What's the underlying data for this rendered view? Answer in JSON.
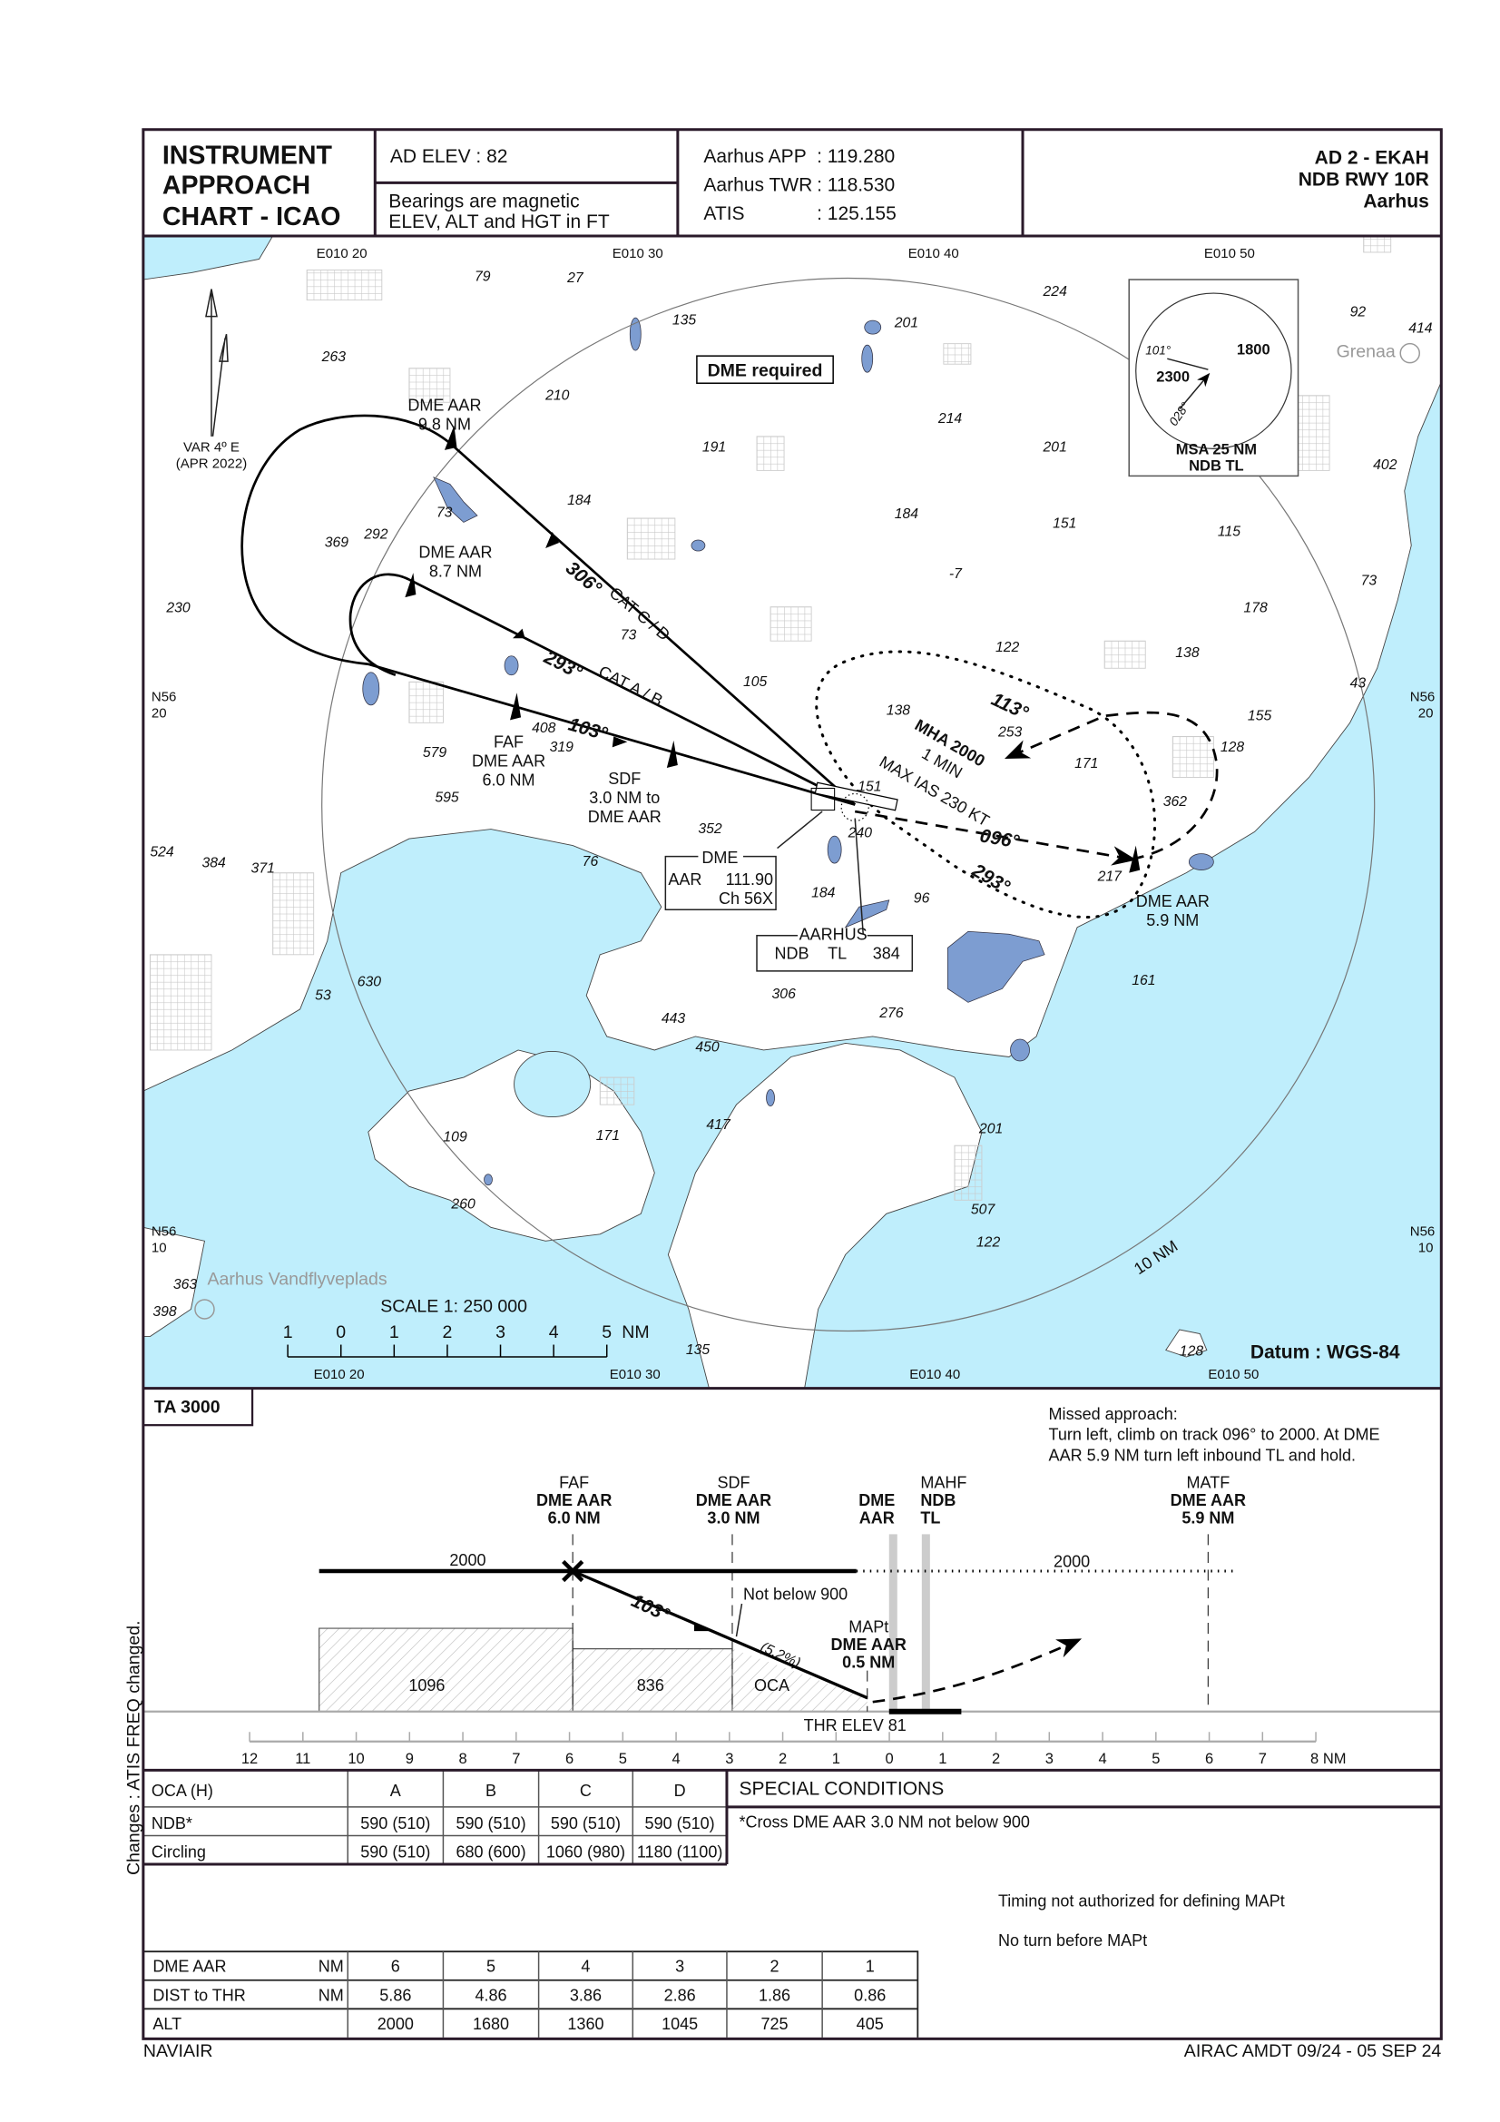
{
  "colors": {
    "sea": "#bfeefc",
    "lake": "#7d9dd1",
    "urban": "#cfcfcf",
    "frame": "#2a1a2a"
  },
  "header": {
    "title_lines": [
      "INSTRUMENT",
      "APPROACH",
      "CHART - ICAO"
    ],
    "ad_elev": "AD ELEV : 82",
    "notes": [
      "Bearings are magnetic",
      "ELEV, ALT and HGT in FT"
    ],
    "freqs": [
      {
        "label": "Aarhus APP",
        "value": ": 119.280"
      },
      {
        "label": "Aarhus TWR",
        "value": ": 118.530"
      },
      {
        "label": "ATIS",
        "value": ": 125.155"
      }
    ],
    "chart_id": [
      "AD 2 - EKAH",
      "NDB RWY 10R",
      "Aarhus"
    ]
  },
  "map": {
    "grid_top": [
      "E010 20",
      "E010 30",
      "E010 40",
      "E010 50"
    ],
    "grid_bottom": [
      "E010 20",
      "E010 30",
      "E010 40",
      "E010 50"
    ],
    "lat_labels": [
      [
        "N56",
        "20"
      ],
      [
        "N56",
        "10"
      ]
    ],
    "dme_required": "DME required",
    "variation": [
      "VAR 4º E",
      "(APR 2022)"
    ],
    "msa": {
      "sectors": [
        "1800",
        "2300"
      ],
      "bearings": [
        "101°",
        "028°"
      ],
      "title": [
        "MSA 25 NM",
        "NDB TL"
      ]
    },
    "grenaa": "Grenaa",
    "seaplane_base": "Aarhus Vandflyveplads",
    "ring_label": "10 NM",
    "fix_labels": {
      "dme_98": [
        "DME AAR",
        "9.8 NM"
      ],
      "dme_87": [
        "DME AAR",
        "8.7 NM"
      ],
      "faf": [
        "FAF",
        "DME AAR",
        "6.0 NM"
      ],
      "sdf": [
        "SDF",
        "3.0 NM to",
        "DME AAR"
      ],
      "matf": [
        "DME AAR",
        "5.9 NM"
      ]
    },
    "tracks": {
      "t306": "306°",
      "cat_cd": "CAT C / D",
      "t293": "293°",
      "cat_ab": "CAT A / B",
      "t103": "103°",
      "t113": "113°",
      "t096": "096°",
      "t293_hold": "293°"
    },
    "holding": [
      "MHA 2000",
      "1 MIN",
      "MAX IAS 230 KT"
    ],
    "dme_box": {
      "title": "DME",
      "ident": "AAR",
      "freq": "111.90",
      "channel": "Ch  56X"
    },
    "ndb_box": {
      "title": "AARHUS",
      "type": "NDB",
      "ident": "TL",
      "freq": "384"
    },
    "spot_heights": [
      "79",
      "27",
      "135",
      "201",
      "224",
      "92",
      "414",
      "263",
      "210",
      "214",
      "191",
      "201",
      "402",
      "184",
      "73",
      "184",
      "151",
      "115",
      "369",
      "292",
      "-7",
      "230",
      "73",
      "178",
      "73",
      "122",
      "138",
      "105",
      "43",
      "138",
      "155",
      "253",
      "128",
      "408",
      "319",
      "579",
      "595",
      "171",
      "151",
      "362",
      "352",
      "240",
      "524",
      "384",
      "371",
      "76",
      "217",
      "184",
      "96",
      "630",
      "53",
      "161",
      "306",
      "276",
      "443",
      "450",
      "417",
      "109",
      "171",
      "201",
      "507",
      "260",
      "122",
      "363",
      "398",
      "135",
      "128"
    ],
    "scale": {
      "title": "SCALE 1: 250 000",
      "ticks": [
        "1",
        "0",
        "1",
        "2",
        "3",
        "4",
        "5"
      ],
      "unit": "NM"
    },
    "datum": "Datum : WGS-84"
  },
  "profile": {
    "ta": "TA 3000",
    "missed_approach": [
      "Missed approach:",
      "Turn left, climb on track 096° to 2000. At DME",
      "AAR 5.9 NM turn left inbound TL and hold."
    ],
    "fixes": [
      {
        "lines": [
          "FAF",
          "DME AAR",
          "6.0 NM"
        ]
      },
      {
        "lines": [
          "SDF",
          "DME AAR",
          "3.0 NM"
        ]
      },
      {
        "lines": [
          "DME",
          "AAR"
        ]
      },
      {
        "lines": [
          "MAHF",
          "NDB",
          "TL"
        ]
      },
      {
        "lines": [
          "MATF",
          "DME AAR",
          "5.9 NM"
        ]
      }
    ],
    "alt_left": "2000",
    "alt_right": "2000",
    "track": "103°",
    "not_below": "Not below 900",
    "gradient": "(5.2%)",
    "mapt": [
      "MAPt",
      "DME AAR",
      "0.5 NM"
    ],
    "oca_values": [
      "1096",
      "836",
      "OCA"
    ],
    "thr_elev": "THR ELEV 81",
    "axis_ticks": [
      "12",
      "11",
      "10",
      "9",
      "8",
      "7",
      "6",
      "5",
      "4",
      "3",
      "2",
      "1",
      "0",
      "1",
      "2",
      "3",
      "4",
      "5",
      "6",
      "7",
      "8 NM"
    ]
  },
  "minima": {
    "headers": [
      "OCA (H)",
      "A",
      "B",
      "C",
      "D"
    ],
    "rows": [
      [
        "NDB*",
        "590 (510)",
        "590 (510)",
        "590 (510)",
        "590 (510)"
      ],
      [
        "Circling",
        "590 (510)",
        "680 (600)",
        "1060 (980)",
        "1180 (1100)"
      ]
    ]
  },
  "special_conditions": {
    "title": "SPECIAL CONDITIONS",
    "items": [
      "*Cross DME AAR 3.0 NM not below 900"
    ]
  },
  "notes": [
    "Timing not authorized for defining MAPt",
    "No turn before MAPt"
  ],
  "dme_table": {
    "rows": [
      {
        "label": "DME AAR",
        "unit": "NM",
        "values": [
          "6",
          "5",
          "4",
          "3",
          "2",
          "1"
        ]
      },
      {
        "label": "DIST to THR",
        "unit": "NM",
        "values": [
          "5.86",
          "4.86",
          "3.86",
          "2.86",
          "1.86",
          "0.86"
        ]
      },
      {
        "label": "ALT",
        "unit": "",
        "values": [
          "2000",
          "1680",
          "1360",
          "1045",
          "725",
          "405"
        ]
      }
    ]
  },
  "side_note": "Changes : ATIS FREQ changed.",
  "footer": {
    "left": "NAVIAIR",
    "right": "AIRAC AMDT 09/24 - 05 SEP 24"
  }
}
